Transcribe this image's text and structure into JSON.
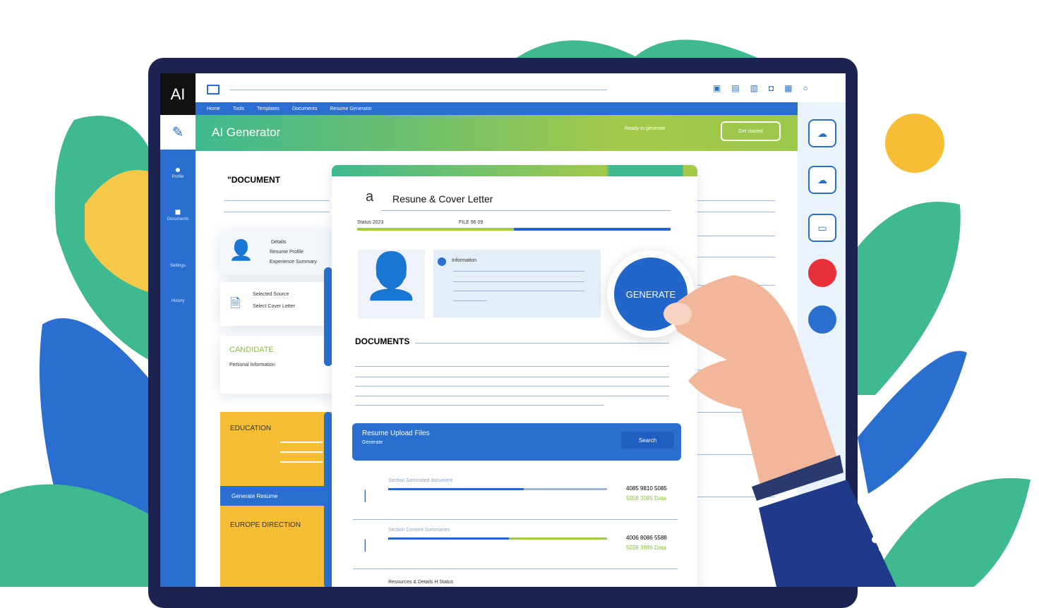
{
  "app": {
    "logo": "AI",
    "title": "AI Generator"
  },
  "nav": {
    "items": [
      "Home",
      "Tools",
      "Templates",
      "Documents",
      "Resume Generator"
    ]
  },
  "header": {
    "status": "Ready to generate",
    "button": "Get started"
  },
  "sidebar": {
    "items": [
      "Profile",
      "Documents",
      "Settings",
      "History"
    ]
  },
  "left_panel": {
    "doc_label": "\"DOCUMENT",
    "profile_card": {
      "title": "Details",
      "line1": "Resume Profile",
      "line2": "Experience Summary"
    },
    "file_card": {
      "title": "Selected Source",
      "line1": "Select Cover Letter"
    },
    "green_card": {
      "title": "CANDIDATE",
      "line": "Personal Information"
    },
    "yellow_card_1": {
      "title": "EDUCATION"
    },
    "blue_strip": "Generate Resume",
    "yellow_card_2": {
      "title": "EUROPE DIRECTION"
    }
  },
  "document": {
    "title": "Resune & Cover Letter",
    "meta_left": "Status 2023",
    "meta_right": "FILE 96 09",
    "progress": 0.5,
    "info_label": "Information",
    "section_label": "DOCUMENTS",
    "search_card": {
      "title": "Resume Upload Files",
      "subtitle": "Generate",
      "button": "Search"
    },
    "rows": [
      {
        "title": "Section Generated document",
        "value": "4085 9810 5085",
        "sub": "5058 3085 Data",
        "progress": 0.62,
        "color": "#9fb6d3"
      },
      {
        "title": "Section Content Summaries",
        "value": "4006 8086 5588",
        "sub": "5038 3886 Data",
        "progress": 0.55,
        "color": "#a3c94a"
      }
    ],
    "footer_row": "Resources & Details H Status"
  },
  "generate_button": "GENERATE",
  "colors": {
    "primary": "#2a6fd0",
    "green": "#3fb98f",
    "lime": "#a3c94a",
    "yellow": "#f6bd35",
    "frame": "#1c2350",
    "red": "#e8303a"
  }
}
